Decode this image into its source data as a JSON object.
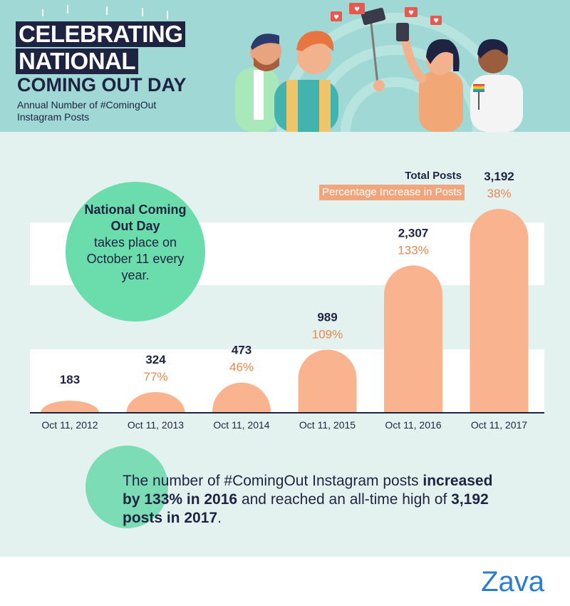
{
  "header": {
    "title_line1": "CELEBRATING",
    "title_line2": "NATIONAL",
    "title_line3": "COMING OUT DAY",
    "subtitle": "Annual Number of #ComingOut Instagram Posts"
  },
  "callout": {
    "bold": "National Coming Out Day",
    "rest": "takes place on October 11 every year."
  },
  "legend": {
    "total_label": "Total Posts",
    "pct_label": "Percentage Increase in Posts"
  },
  "summary": {
    "part1": "The number of #ComingOut Instagram posts ",
    "bold1": "increased by 133% in 2016",
    "part2": " and reached an all-time high of ",
    "bold2": "3,192 posts in 2017",
    "part3": "."
  },
  "footer": {
    "brand": "Zava"
  },
  "colors": {
    "bar": "#f9b38e",
    "pct_text": "#e9884f",
    "dark": "#1f2342",
    "circle": "#6bdcac",
    "header_bg": "#9fd8d4",
    "chart_bg": "#e3f2ef",
    "brand": "#2a7bd6"
  },
  "chart_data": {
    "type": "bar",
    "categories": [
      "Oct 11, 2012",
      "Oct 11, 2013",
      "Oct 11, 2014",
      "Oct 11, 2015",
      "Oct 11, 2016",
      "Oct 11, 2017"
    ],
    "series": [
      {
        "name": "Total Posts",
        "values": [
          183,
          324,
          473,
          989,
          2307,
          3192
        ],
        "labels": [
          "183",
          "324",
          "473",
          "989",
          "2,307",
          "3,192"
        ]
      },
      {
        "name": "Percentage Increase in Posts",
        "values": [
          null,
          77,
          46,
          109,
          133,
          38
        ],
        "labels": [
          "",
          "77%",
          "46%",
          "109%",
          "133%",
          "38%"
        ]
      }
    ],
    "title": "Annual Number of #ComingOut Instagram Posts",
    "xlabel": "",
    "ylabel": "",
    "ylim": [
      0,
      3192
    ],
    "grid": false,
    "legend": "top-right"
  }
}
